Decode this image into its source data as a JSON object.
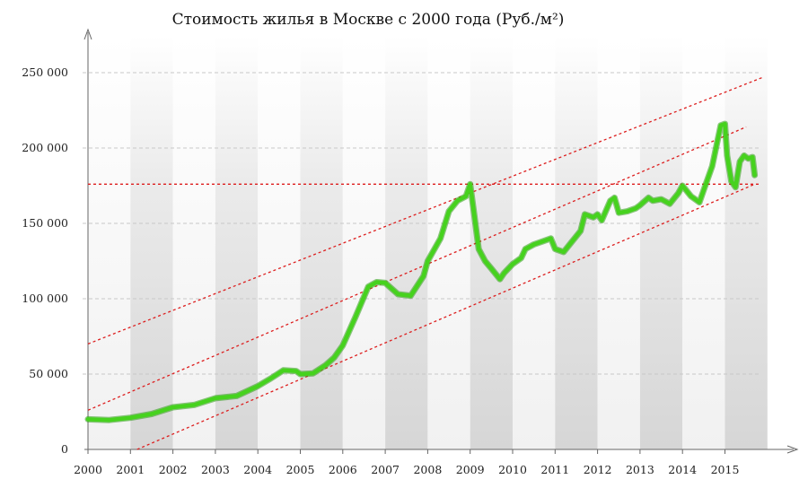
{
  "chart_data": {
    "type": "line",
    "title": "Стоимость жилья в Москве с 2000 года (Руб./м²)",
    "xlabel": "",
    "ylabel": "",
    "xlim": [
      2000,
      2016.6
    ],
    "ylim": [
      0,
      250000
    ],
    "grid": true,
    "legend": "none",
    "x_tick_labels": [
      "2000",
      "2001",
      "2002",
      "2003",
      "2004",
      "2005",
      "2006",
      "2007",
      "2008",
      "2009",
      "2010",
      "2011",
      "2012",
      "2013",
      "2014",
      "2015"
    ],
    "y_tick_labels": [
      "0",
      "50 000",
      "100 000",
      "150 000",
      "200 000",
      "250 000"
    ],
    "y_ticks": [
      0,
      50000,
      100000,
      150000,
      200000,
      250000
    ],
    "series": [
      {
        "x": [
          2000,
          2000.5,
          2001,
          2001.5,
          2002,
          2002.5,
          2003,
          2003.5,
          2004,
          2004.3,
          2004.6,
          2004.9,
          2005,
          2005.3,
          2005.6,
          2005.8,
          2006,
          2006.3,
          2006.6,
          2006.8,
          2007,
          2007.3,
          2007.6,
          2007.9,
          2008,
          2008.3,
          2008.5,
          2008.7,
          2008.9,
          2009,
          2009.1,
          2009.2,
          2009.35,
          2009.5,
          2009.7,
          2009.8,
          2010,
          2010.2,
          2010.3,
          2010.5,
          2010.7,
          2010.9,
          2011,
          2011.2,
          2011.4,
          2011.6,
          2011.7,
          2011.9,
          2012,
          2012.1,
          2012.3,
          2012.4,
          2012.5,
          2012.7,
          2012.9,
          2013,
          2013.2,
          2013.3,
          2013.5,
          2013.7,
          2013.9,
          2014,
          2014.2,
          2014.4,
          2014.5,
          2014.7,
          2014.9,
          2015,
          2015.05,
          2015.15,
          2015.25,
          2015.35,
          2015.45,
          2015.55,
          2015.65,
          2015.7
        ],
        "values": [
          20000,
          19500,
          21000,
          23500,
          28000,
          29500,
          34000,
          35500,
          42000,
          47000,
          52500,
          52000,
          50000,
          50500,
          56000,
          61000,
          69000,
          88000,
          108000,
          111000,
          110500,
          103000,
          102000,
          115000,
          125000,
          140000,
          158000,
          165000,
          168000,
          176000,
          155000,
          133000,
          125000,
          120000,
          113000,
          117000,
          123000,
          127000,
          133000,
          136000,
          138000,
          140000,
          133000,
          131000,
          138000,
          145000,
          156000,
          154000,
          156000,
          152000,
          165000,
          167000,
          157000,
          158000,
          160000,
          162000,
          167000,
          165000,
          166000,
          163000,
          170000,
          175000,
          168000,
          164000,
          172000,
          188000,
          215000,
          216000,
          195000,
          178000,
          174000,
          191000,
          195000,
          193000,
          194000,
          182000
        ]
      }
    ],
    "trend_lines": [
      {
        "x": [
          2000,
          2015.9
        ],
        "values": [
          70000,
          247000
        ]
      },
      {
        "x": [
          2000,
          2015.5
        ],
        "values": [
          26000,
          214000
        ]
      },
      {
        "x": [
          2000,
          2015.7
        ],
        "values": [
          -14000,
          176000
        ]
      },
      {
        "x": [
          2000,
          2015.8
        ],
        "values": [
          176000,
          176000
        ]
      }
    ],
    "colors": {
      "line": "#46d21e",
      "line_dark": "#2c9a12",
      "trend": "#dd1e1e",
      "band_dark": "#dadada",
      "band_light": "#f3f3f3",
      "grid": "#c8c8c8",
      "axis": "#666666"
    }
  }
}
